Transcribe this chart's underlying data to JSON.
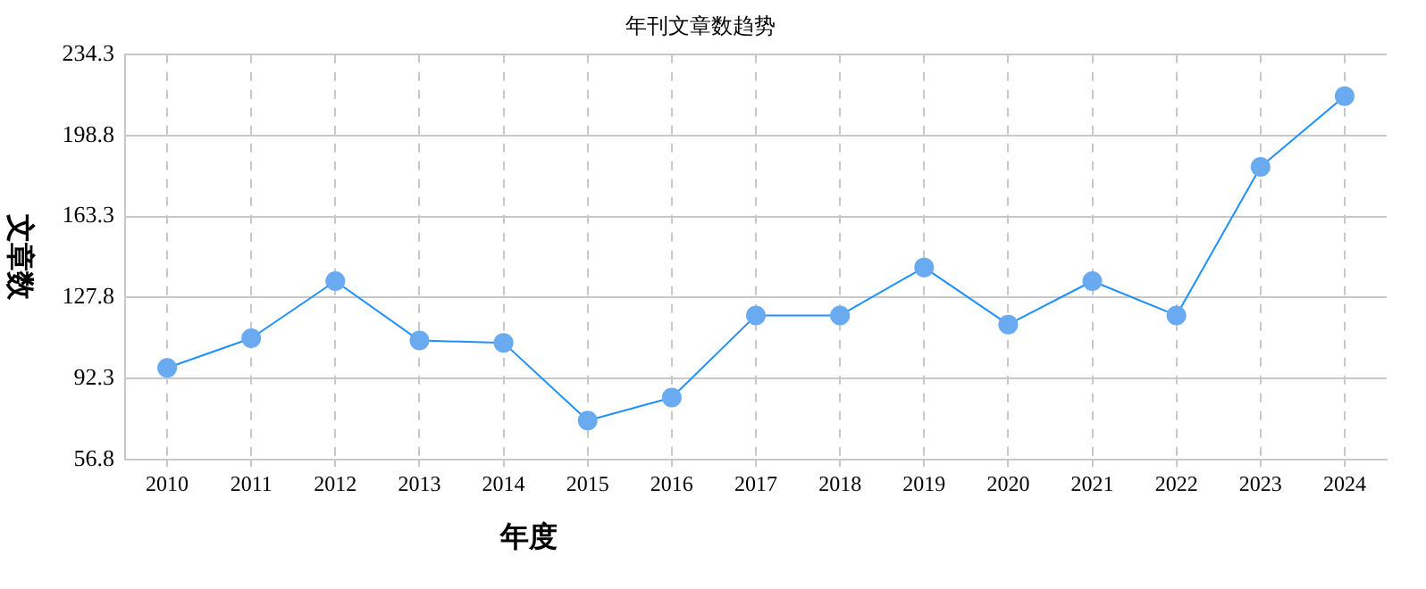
{
  "chart_data": {
    "type": "line",
    "title": "年刊文章数趋势",
    "xlabel": "年度",
    "ylabel": "文章数",
    "categories": [
      "2010",
      "2011",
      "2012",
      "2013",
      "2014",
      "2015",
      "2016",
      "2017",
      "2018",
      "2019",
      "2020",
      "2021",
      "2022",
      "2023",
      "2024"
    ],
    "series": [
      {
        "color": "#1e90ff",
        "values": [
          97,
          110,
          135,
          109,
          108,
          74,
          84,
          120,
          120,
          141,
          116,
          135,
          120,
          185,
          216
        ]
      }
    ],
    "ylim": [
      56.8,
      234.3
    ],
    "yticks": [
      56.8,
      92.3,
      127.8,
      163.3,
      198.8,
      234.3
    ],
    "grid": true,
    "legend": false,
    "marker": "circle",
    "line_style": "solid"
  }
}
